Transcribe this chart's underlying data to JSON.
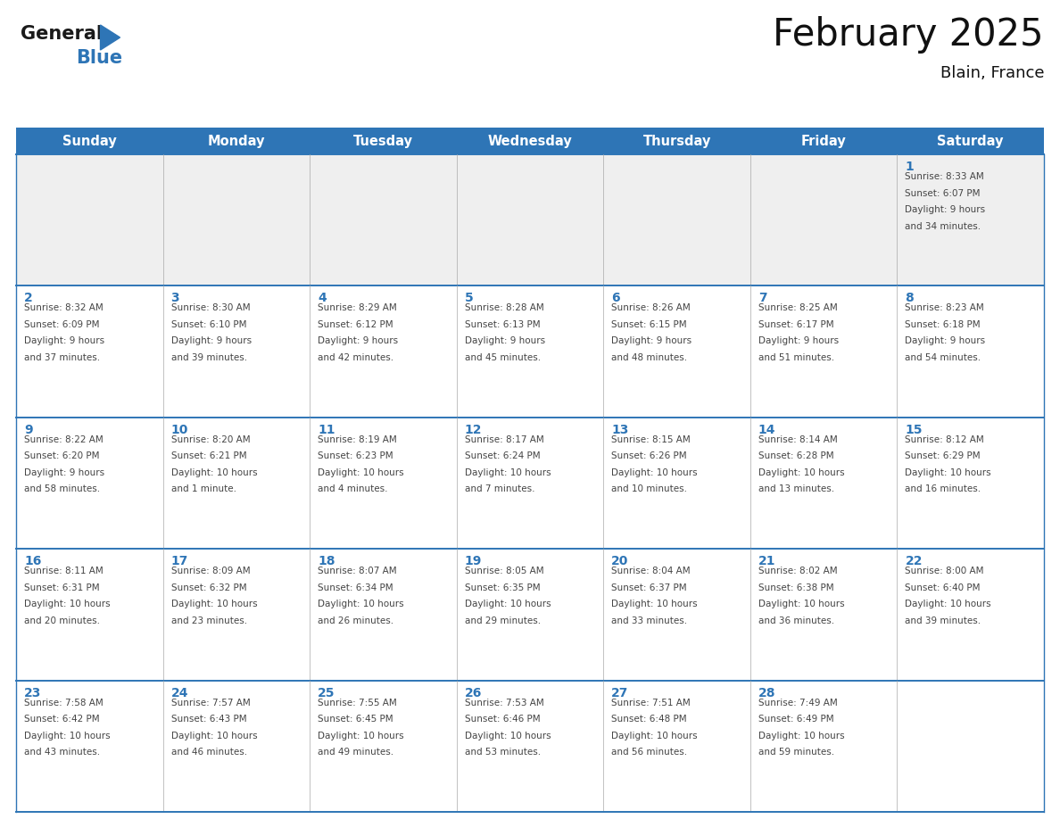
{
  "title": "February 2025",
  "subtitle": "Blain, France",
  "header_color": "#2E75B6",
  "header_text_color": "#FFFFFF",
  "cell_bg_week1": "#EFEFEF",
  "cell_bg_other": "#FFFFFF",
  "day_number_color": "#2E75B6",
  "text_color": "#444444",
  "border_color": "#2E75B6",
  "divider_color": "#AAAAAA",
  "weekdays": [
    "Sunday",
    "Monday",
    "Tuesday",
    "Wednesday",
    "Thursday",
    "Friday",
    "Saturday"
  ],
  "weeks": [
    [
      {
        "day": null,
        "sunrise": null,
        "sunset": null,
        "daylight": null
      },
      {
        "day": null,
        "sunrise": null,
        "sunset": null,
        "daylight": null
      },
      {
        "day": null,
        "sunrise": null,
        "sunset": null,
        "daylight": null
      },
      {
        "day": null,
        "sunrise": null,
        "sunset": null,
        "daylight": null
      },
      {
        "day": null,
        "sunrise": null,
        "sunset": null,
        "daylight": null
      },
      {
        "day": null,
        "sunrise": null,
        "sunset": null,
        "daylight": null
      },
      {
        "day": 1,
        "sunrise": "8:33 AM",
        "sunset": "6:07 PM",
        "daylight": "9 hours\nand 34 minutes."
      }
    ],
    [
      {
        "day": 2,
        "sunrise": "8:32 AM",
        "sunset": "6:09 PM",
        "daylight": "9 hours\nand 37 minutes."
      },
      {
        "day": 3,
        "sunrise": "8:30 AM",
        "sunset": "6:10 PM",
        "daylight": "9 hours\nand 39 minutes."
      },
      {
        "day": 4,
        "sunrise": "8:29 AM",
        "sunset": "6:12 PM",
        "daylight": "9 hours\nand 42 minutes."
      },
      {
        "day": 5,
        "sunrise": "8:28 AM",
        "sunset": "6:13 PM",
        "daylight": "9 hours\nand 45 minutes."
      },
      {
        "day": 6,
        "sunrise": "8:26 AM",
        "sunset": "6:15 PM",
        "daylight": "9 hours\nand 48 minutes."
      },
      {
        "day": 7,
        "sunrise": "8:25 AM",
        "sunset": "6:17 PM",
        "daylight": "9 hours\nand 51 minutes."
      },
      {
        "day": 8,
        "sunrise": "8:23 AM",
        "sunset": "6:18 PM",
        "daylight": "9 hours\nand 54 minutes."
      }
    ],
    [
      {
        "day": 9,
        "sunrise": "8:22 AM",
        "sunset": "6:20 PM",
        "daylight": "9 hours\nand 58 minutes."
      },
      {
        "day": 10,
        "sunrise": "8:20 AM",
        "sunset": "6:21 PM",
        "daylight": "10 hours\nand 1 minute."
      },
      {
        "day": 11,
        "sunrise": "8:19 AM",
        "sunset": "6:23 PM",
        "daylight": "10 hours\nand 4 minutes."
      },
      {
        "day": 12,
        "sunrise": "8:17 AM",
        "sunset": "6:24 PM",
        "daylight": "10 hours\nand 7 minutes."
      },
      {
        "day": 13,
        "sunrise": "8:15 AM",
        "sunset": "6:26 PM",
        "daylight": "10 hours\nand 10 minutes."
      },
      {
        "day": 14,
        "sunrise": "8:14 AM",
        "sunset": "6:28 PM",
        "daylight": "10 hours\nand 13 minutes."
      },
      {
        "day": 15,
        "sunrise": "8:12 AM",
        "sunset": "6:29 PM",
        "daylight": "10 hours\nand 16 minutes."
      }
    ],
    [
      {
        "day": 16,
        "sunrise": "8:11 AM",
        "sunset": "6:31 PM",
        "daylight": "10 hours\nand 20 minutes."
      },
      {
        "day": 17,
        "sunrise": "8:09 AM",
        "sunset": "6:32 PM",
        "daylight": "10 hours\nand 23 minutes."
      },
      {
        "day": 18,
        "sunrise": "8:07 AM",
        "sunset": "6:34 PM",
        "daylight": "10 hours\nand 26 minutes."
      },
      {
        "day": 19,
        "sunrise": "8:05 AM",
        "sunset": "6:35 PM",
        "daylight": "10 hours\nand 29 minutes."
      },
      {
        "day": 20,
        "sunrise": "8:04 AM",
        "sunset": "6:37 PM",
        "daylight": "10 hours\nand 33 minutes."
      },
      {
        "day": 21,
        "sunrise": "8:02 AM",
        "sunset": "6:38 PM",
        "daylight": "10 hours\nand 36 minutes."
      },
      {
        "day": 22,
        "sunrise": "8:00 AM",
        "sunset": "6:40 PM",
        "daylight": "10 hours\nand 39 minutes."
      }
    ],
    [
      {
        "day": 23,
        "sunrise": "7:58 AM",
        "sunset": "6:42 PM",
        "daylight": "10 hours\nand 43 minutes."
      },
      {
        "day": 24,
        "sunrise": "7:57 AM",
        "sunset": "6:43 PM",
        "daylight": "10 hours\nand 46 minutes."
      },
      {
        "day": 25,
        "sunrise": "7:55 AM",
        "sunset": "6:45 PM",
        "daylight": "10 hours\nand 49 minutes."
      },
      {
        "day": 26,
        "sunrise": "7:53 AM",
        "sunset": "6:46 PM",
        "daylight": "10 hours\nand 53 minutes."
      },
      {
        "day": 27,
        "sunrise": "7:51 AM",
        "sunset": "6:48 PM",
        "daylight": "10 hours\nand 56 minutes."
      },
      {
        "day": 28,
        "sunrise": "7:49 AM",
        "sunset": "6:49 PM",
        "daylight": "10 hours\nand 59 minutes."
      },
      {
        "day": null,
        "sunrise": null,
        "sunset": null,
        "daylight": null
      }
    ]
  ],
  "logo_general_color": "#1a1a1a",
  "logo_blue_color": "#2E75B6"
}
